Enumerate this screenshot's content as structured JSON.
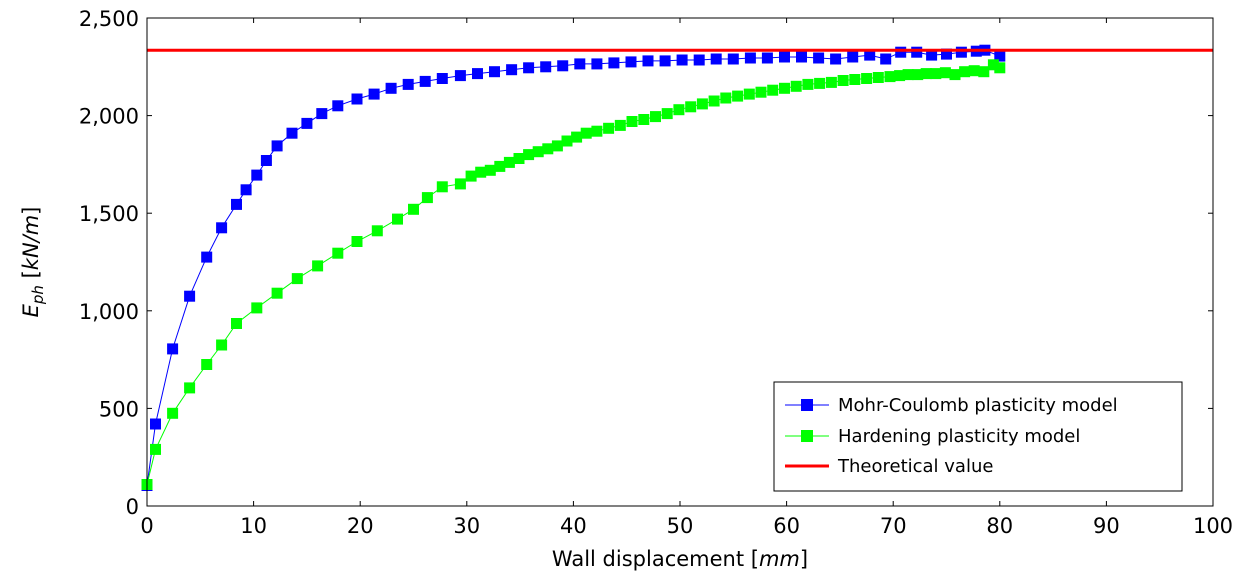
{
  "chart_data": {
    "type": "line",
    "xlabel": {
      "prefix": "Wall displacement [",
      "unit": "mm",
      "suffix": "]"
    },
    "ylabel": {
      "base": "E",
      "sub": "ph",
      "prefix": " [",
      "unit": "kN/m",
      "suffix": "]"
    },
    "xlim": [
      0,
      100
    ],
    "ylim": [
      0,
      2500
    ],
    "xticks": [
      0,
      10,
      20,
      30,
      40,
      50,
      60,
      70,
      80,
      90,
      100
    ],
    "yticks": [
      0,
      500,
      1000,
      1500,
      2000,
      2500
    ],
    "ytick_labels": [
      "0",
      "500",
      "1,000",
      "1,500",
      "2,000",
      "2,500"
    ],
    "grid": false,
    "legend_position": "bottom-right",
    "series": [
      {
        "name": "Mohr-Coulomb plasticity model",
        "color": "#0000ff",
        "marker": "square",
        "x": [
          0.0,
          0.8,
          2.4,
          4.0,
          5.6,
          7.0,
          8.4,
          9.3,
          10.3,
          11.2,
          12.2,
          13.6,
          15.0,
          16.4,
          17.9,
          19.7,
          21.3,
          22.9,
          24.5,
          26.1,
          27.7,
          29.4,
          31.0,
          32.6,
          34.2,
          35.8,
          37.4,
          39.0,
          40.6,
          42.2,
          43.8,
          45.4,
          47.0,
          48.6,
          50.2,
          51.8,
          53.4,
          55.0,
          56.6,
          58.2,
          59.8,
          61.4,
          63.0,
          64.6,
          66.2,
          67.8,
          69.3,
          70.7,
          72.2,
          73.6,
          75.0,
          76.4,
          77.8,
          78.6,
          80.0
        ],
        "y": [
          105,
          420,
          805,
          1075,
          1275,
          1425,
          1545,
          1620,
          1695,
          1770,
          1845,
          1910,
          1960,
          2010,
          2050,
          2085,
          2110,
          2140,
          2160,
          2175,
          2190,
          2205,
          2215,
          2225,
          2235,
          2245,
          2250,
          2255,
          2265,
          2265,
          2270,
          2275,
          2280,
          2280,
          2285,
          2285,
          2290,
          2290,
          2295,
          2295,
          2300,
          2300,
          2295,
          2290,
          2300,
          2310,
          2290,
          2325,
          2325,
          2310,
          2315,
          2325,
          2330,
          2335,
          2305
        ]
      },
      {
        "name": "Hardening plasticity model",
        "color": "#00ff00",
        "marker": "square",
        "x": [
          0.0,
          0.8,
          2.4,
          4.0,
          5.6,
          7.0,
          8.4,
          10.3,
          12.2,
          14.1,
          16.0,
          17.9,
          19.7,
          21.6,
          23.5,
          25.0,
          26.3,
          27.7,
          29.4,
          30.4,
          31.3,
          32.2,
          33.1,
          34.0,
          34.9,
          35.8,
          36.7,
          37.6,
          38.5,
          39.4,
          40.3,
          41.2,
          42.2,
          43.3,
          44.4,
          45.5,
          46.6,
          47.7,
          48.8,
          49.9,
          51.0,
          52.1,
          53.2,
          54.3,
          55.4,
          56.5,
          57.6,
          58.7,
          59.8,
          60.9,
          62.0,
          63.1,
          64.2,
          65.3,
          66.4,
          67.5,
          68.6,
          69.7,
          70.6,
          71.4,
          72.3,
          73.1,
          74.0,
          74.9,
          75.8,
          76.7,
          77.6,
          78.5,
          79.4,
          80.0
        ],
        "y": [
          110,
          290,
          475,
          605,
          725,
          825,
          935,
          1015,
          1090,
          1165,
          1230,
          1295,
          1355,
          1410,
          1470,
          1520,
          1580,
          1635,
          1650,
          1690,
          1710,
          1720,
          1740,
          1760,
          1780,
          1800,
          1815,
          1830,
          1845,
          1870,
          1890,
          1910,
          1920,
          1935,
          1950,
          1970,
          1980,
          1995,
          2010,
          2030,
          2045,
          2060,
          2075,
          2090,
          2100,
          2110,
          2120,
          2130,
          2140,
          2150,
          2160,
          2165,
          2170,
          2180,
          2185,
          2190,
          2195,
          2200,
          2205,
          2210,
          2210,
          2215,
          2215,
          2220,
          2210,
          2225,
          2230,
          2225,
          2260,
          2245
        ]
      },
      {
        "name": "Theoretical value",
        "color": "#ff0000",
        "marker": "none",
        "constant": 2335
      }
    ]
  }
}
